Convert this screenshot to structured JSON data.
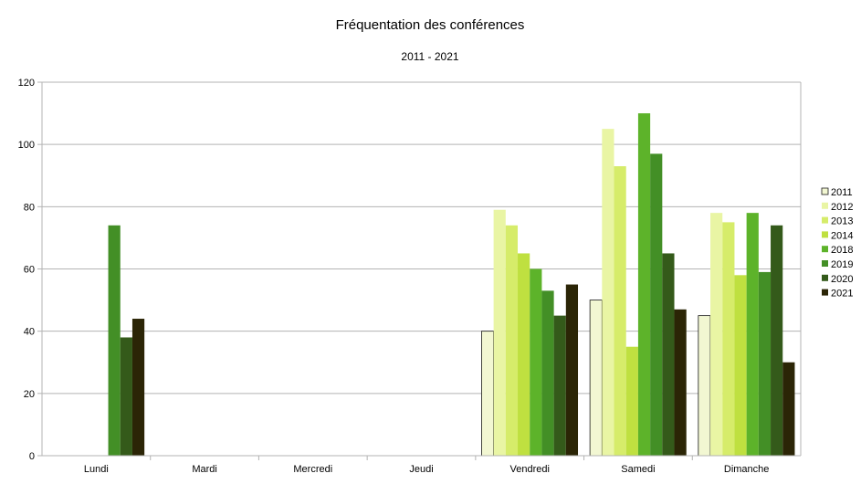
{
  "chart_data": {
    "type": "bar",
    "title": "Fréquentation des conférences",
    "subtitle": "2011 - 2021",
    "xlabel": "",
    "ylabel": "",
    "ylim": [
      0,
      120
    ],
    "yticks": [
      0,
      20,
      40,
      60,
      80,
      100,
      120
    ],
    "grid": true,
    "legend_position": "right",
    "categories": [
      "Lundi",
      "Mardi",
      "Mercredi",
      "Jeudi",
      "Vendredi",
      "Samedi",
      "Dimanche"
    ],
    "series": [
      {
        "name": "2011",
        "color": "#f2f7d2",
        "values": [
          0,
          0,
          0,
          0,
          40,
          50,
          45
        ]
      },
      {
        "name": "2012",
        "color": "#e9f5a4",
        "values": [
          0,
          0,
          0,
          0,
          79,
          105,
          78
        ]
      },
      {
        "name": "2013",
        "color": "#d6ec6a",
        "values": [
          0,
          0,
          0,
          0,
          74,
          93,
          75
        ]
      },
      {
        "name": "2014",
        "color": "#bfe040",
        "values": [
          0,
          0,
          0,
          0,
          65,
          35,
          58
        ]
      },
      {
        "name": "2018",
        "color": "#5db32a",
        "values": [
          0,
          0,
          0,
          0,
          60,
          110,
          78
        ]
      },
      {
        "name": "2019",
        "color": "#438f26",
        "values": [
          74,
          0,
          0,
          0,
          53,
          97,
          59
        ]
      },
      {
        "name": "2020",
        "color": "#345a1a",
        "values": [
          38,
          0,
          0,
          0,
          45,
          65,
          74
        ]
      },
      {
        "name": "2021",
        "color": "#2b2506",
        "values": [
          44,
          0,
          0,
          0,
          55,
          47,
          30
        ]
      }
    ]
  }
}
